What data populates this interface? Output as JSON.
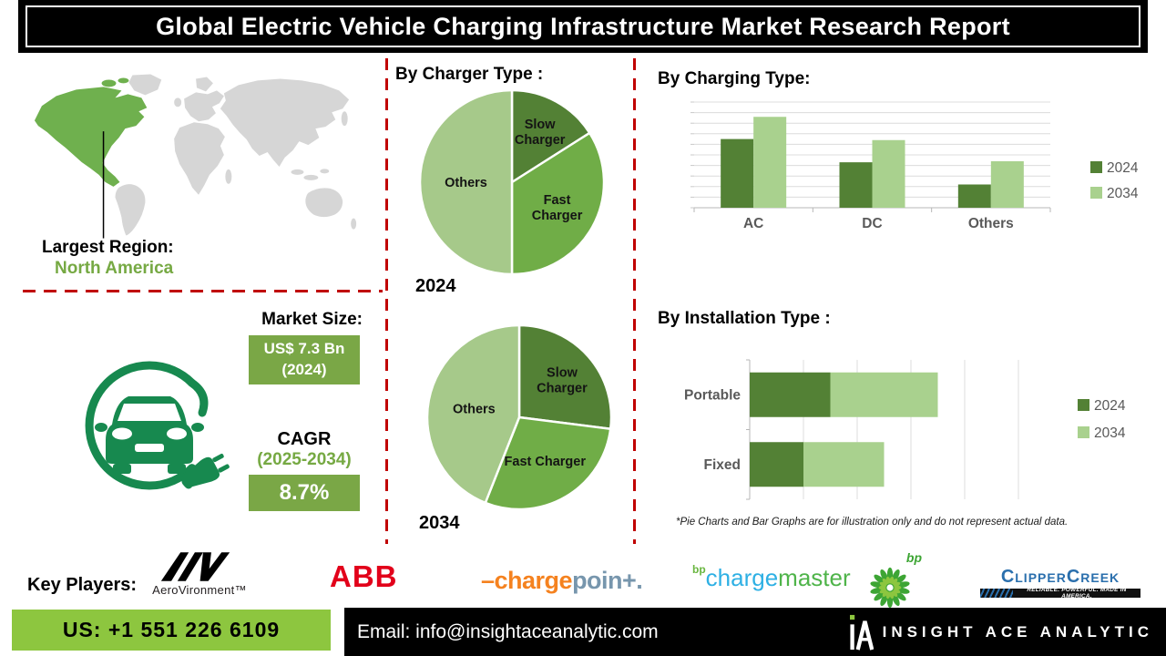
{
  "header": {
    "title": "Global Electric Vehicle Charging Infrastructure Market Research Report"
  },
  "region": {
    "label": "Largest Region:",
    "value": "North America"
  },
  "market": {
    "size_label": "Market Size:",
    "size_value": "US$ 7.3 Bn",
    "size_year": "(2024)",
    "cagr_label": "CAGR",
    "cagr_period": "(2025-2034)",
    "cagr_value": "8.7%"
  },
  "colors": {
    "accent_green": "#7aa746",
    "map_green": "#6fb04e",
    "series_2024": "#538135",
    "series_2034": "#a9d18e",
    "pie_mid_green": "#70ad47",
    "pie_light_green": "#a6c98a",
    "red_dash": "#c00000",
    "icon_green": "#17894f",
    "footer_green": "#8dc63f"
  },
  "chart_data": [
    {
      "type": "pie",
      "title": "By Charger Type :",
      "year_label": "2024",
      "slices": [
        {
          "label": "Slow Charger",
          "lines": [
            "Slow",
            "Charger"
          ],
          "value": 16,
          "color": "#538135"
        },
        {
          "label": "Fast Charger",
          "lines": [
            "Fast",
            "Charger"
          ],
          "value": 34,
          "color": "#70ad47"
        },
        {
          "label": "Others",
          "lines": [
            "Others"
          ],
          "value": 50,
          "color": "#a6c98a"
        }
      ]
    },
    {
      "type": "pie",
      "year_label": "2034",
      "slices": [
        {
          "label": "Slow Charger",
          "lines": [
            "Slow",
            "Charger"
          ],
          "value": 27,
          "color": "#538135"
        },
        {
          "label": "Fast Charger",
          "lines": [
            "Fast Charger"
          ],
          "value": 29,
          "color": "#70ad47"
        },
        {
          "label": "Others",
          "lines": [
            "Others"
          ],
          "value": 44,
          "color": "#a6c98a"
        }
      ]
    },
    {
      "type": "bar",
      "title": "By Charging Type:",
      "categories": [
        "AC",
        "DC",
        "Others"
      ],
      "series": [
        {
          "name": "2024",
          "color": "#538135",
          "values": [
            65,
            43,
            22
          ]
        },
        {
          "name": "2034",
          "color": "#a9d18e",
          "values": [
            86,
            64,
            44
          ]
        }
      ],
      "ylim": [
        0,
        100
      ],
      "gridline_step": 10,
      "legend_position": "right"
    },
    {
      "type": "bar-horizontal-stacked",
      "title": "By Installation Type :",
      "categories": [
        "Portable",
        "Fixed"
      ],
      "series": [
        {
          "name": "2024",
          "color": "#538135",
          "values": [
            30,
            20
          ]
        },
        {
          "name": "2034",
          "color": "#a9d18e",
          "values": [
            40,
            30
          ]
        }
      ],
      "xlim": [
        0,
        115
      ],
      "gridline_step": 20,
      "legend_position": "right"
    }
  ],
  "disclaimer": "*Pie Charts and Bar Graphs are for illustration only and do not represent actual data.",
  "key_players": {
    "label": "Key Players:",
    "aerovironment": {
      "mark": "AV",
      "name": "AeroVironment™"
    },
    "abb": "ABB",
    "chargepoint": {
      "part1": "–charge",
      "part2": "poin+."
    },
    "bp_chargemaster": {
      "sup": "bp",
      "charge": "charge",
      "master": "master",
      "helios_label": "bp"
    },
    "clippercreek": {
      "name": "ClipperCreek",
      "tagline": "RELIABLE. POWERFUL. MADE IN AMERICA."
    }
  },
  "footer": {
    "phone": "US: +1 551 226 6109",
    "email": "Email: info@insightaceanalytic.com",
    "brand": "INSIGHT ACE ANALYTIC"
  }
}
